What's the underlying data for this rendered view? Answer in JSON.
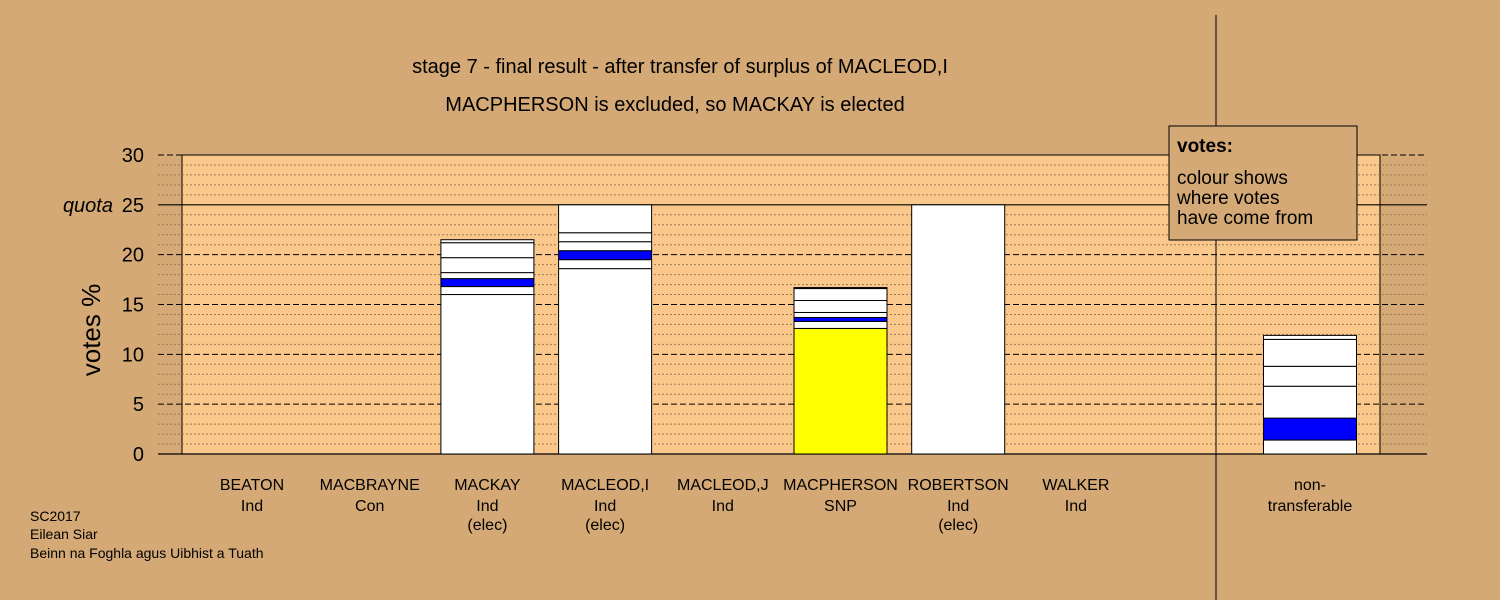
{
  "chart_data": {
    "type": "bar",
    "title": "stage 7 - final result - after transfer of surplus of MACLEOD,I",
    "subtitle": "MACPHERSON is excluded, so MACKAY is elected",
    "ylabel": "votes %",
    "ylim": [
      0,
      30
    ],
    "yticks": [
      0,
      5,
      10,
      15,
      20,
      25,
      30
    ],
    "quota": 25,
    "quota_label": "quota",
    "colors": {
      "background": "#d4a976",
      "plot_area": "#fbc88b",
      "white": "#ffffff",
      "blue": "#0000ff",
      "yellow": "#ffff00"
    },
    "categories": [
      {
        "name": "BEATON",
        "party": "Ind",
        "status": "",
        "segments": []
      },
      {
        "name": "MACBRAYNE",
        "party": "Con",
        "status": "",
        "segments": []
      },
      {
        "name": "MACKAY",
        "party": "Ind",
        "status": "(elec)",
        "segments": [
          {
            "value": 16.0,
            "color": "white"
          },
          {
            "value": 0.8,
            "color": "white"
          },
          {
            "value": 0.8,
            "color": "blue"
          },
          {
            "value": 0.6,
            "color": "white"
          },
          {
            "value": 1.5,
            "color": "white"
          },
          {
            "value": 1.5,
            "color": "white"
          },
          {
            "value": 0.3,
            "color": "white"
          }
        ]
      },
      {
        "name": "MACLEOD,I",
        "party": "Ind",
        "status": "(elec)",
        "segments": [
          {
            "value": 18.6,
            "color": "white"
          },
          {
            "value": 0.9,
            "color": "white"
          },
          {
            "value": 0.9,
            "color": "blue"
          },
          {
            "value": 0.9,
            "color": "white"
          },
          {
            "value": 0.9,
            "color": "white"
          },
          {
            "value": 2.8,
            "color": "white"
          }
        ]
      },
      {
        "name": "MACLEOD,J",
        "party": "Ind",
        "status": "",
        "segments": []
      },
      {
        "name": "MACPHERSON",
        "party": "SNP",
        "status": "",
        "segments": [
          {
            "value": 12.6,
            "color": "yellow"
          },
          {
            "value": 0.7,
            "color": "white"
          },
          {
            "value": 0.4,
            "color": "blue"
          },
          {
            "value": 0.5,
            "color": "white"
          },
          {
            "value": 1.2,
            "color": "white"
          },
          {
            "value": 1.2,
            "color": "white"
          },
          {
            "value": 0.1,
            "color": "white"
          }
        ]
      },
      {
        "name": "ROBERTSON",
        "party": "Ind",
        "status": "(elec)",
        "segments": [
          {
            "value": 25.0,
            "color": "white"
          }
        ]
      },
      {
        "name": "WALKER",
        "party": "Ind",
        "status": "",
        "segments": []
      }
    ],
    "non_transferable": {
      "name": "non-",
      "name2": "transferable",
      "segments": [
        {
          "value": 1.4,
          "color": "white"
        },
        {
          "value": 2.2,
          "color": "blue"
        },
        {
          "value": 3.2,
          "color": "white"
        },
        {
          "value": 2.0,
          "color": "white"
        },
        {
          "value": 2.7,
          "color": "white"
        },
        {
          "value": 0.4,
          "color": "white"
        }
      ]
    },
    "legend": {
      "title": "votes:",
      "lines": [
        "colour shows",
        "where votes",
        "have come from"
      ],
      "placement": "top-right"
    }
  },
  "footer": {
    "lines": [
      "SC2017",
      "Eilean Siar",
      "Beinn na Foghla agus Uibhist a Tuath"
    ]
  }
}
